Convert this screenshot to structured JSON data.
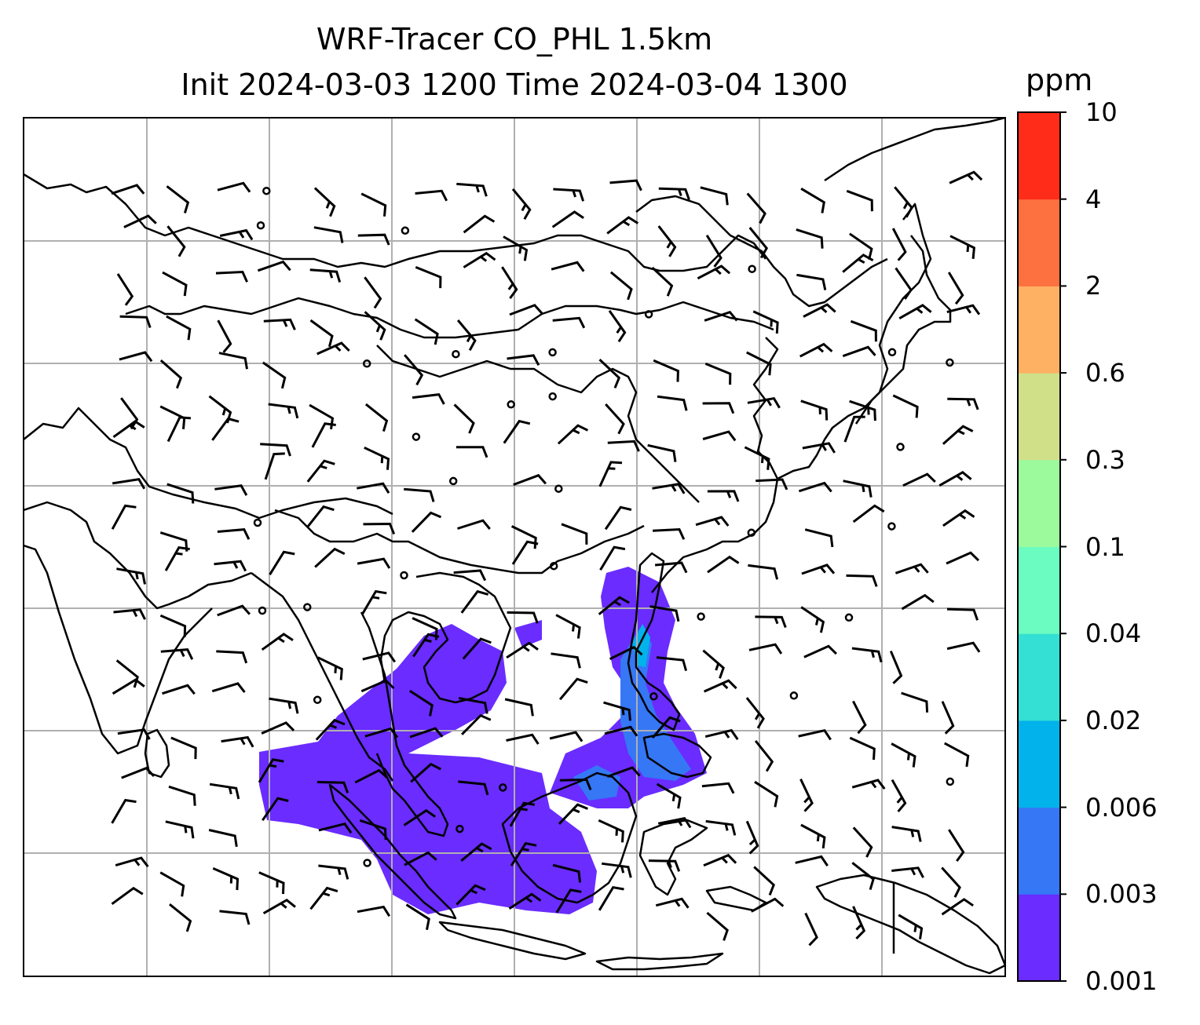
{
  "title": {
    "line1": "WRF-Tracer CO_PHL 1.5km",
    "line2": "Init 2024-03-03 1200 Time 2024-03-04 1300"
  },
  "colorbar": {
    "unit": "ppm",
    "levels": [
      "0.001",
      "0.003",
      "0.006",
      "0.02",
      "0.04",
      "0.1",
      "0.3",
      "0.6",
      "2",
      "4",
      "10"
    ],
    "colors": [
      "#6a2cff",
      "#3577f5",
      "#02b2ea",
      "#34dfd3",
      "#6afcc0",
      "#9cfa9c",
      "#d0e088",
      "#feb063",
      "#fd7040",
      "#fe2c18"
    ]
  },
  "map": {
    "coastline_color": "#000000",
    "gridline_color": "#b0b0b0",
    "plume_color": "#6a2cff",
    "plume_secondary_color": "#3577f5",
    "plume_core_color": "#02b2ea"
  }
}
